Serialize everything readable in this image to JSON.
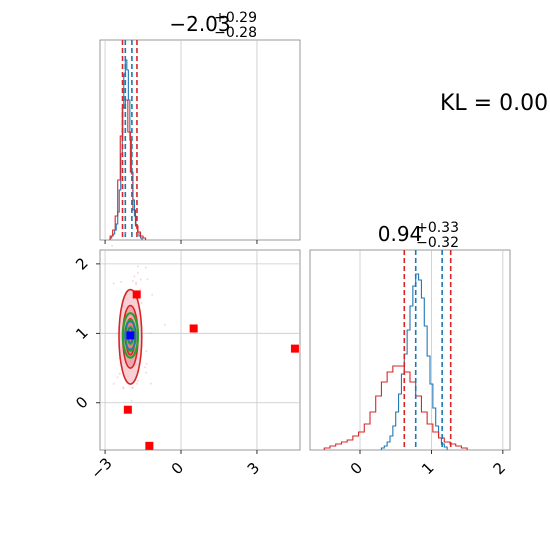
{
  "kl_text": "KL = 0.00",
  "colors": {
    "blue": "#1f77b4",
    "red": "#d62728",
    "green": "#2ca02c",
    "pink": "#f4a6b8",
    "marker_red": "#ff0000",
    "marker_blue": "#0000ff",
    "grid": "#c8c8c8"
  },
  "chart_data": [
    {
      "panel": "marginal-x",
      "type": "histogram",
      "title": "−2.03",
      "title_sup": "+0.29",
      "title_sub": "−0.28",
      "xlim": [
        -3.2,
        4.7
      ],
      "xticks": [
        -3,
        0,
        3
      ],
      "xtick_labels": [
        "−3",
        "0",
        "3"
      ],
      "ylim": [
        0,
        1.0
      ],
      "quantiles_blue": [
        -2.2,
        -1.94
      ],
      "quantiles_red": [
        -2.31,
        -1.74
      ],
      "series": [
        {
          "color": "blue",
          "bin_start": -2.8,
          "bin_width": 0.06,
          "values": [
            0.01,
            0.02,
            0.03,
            0.05,
            0.08,
            0.14,
            0.25,
            0.43,
            0.66,
            0.83,
            0.9,
            0.85,
            0.7,
            0.5,
            0.33,
            0.2,
            0.12,
            0.07,
            0.04,
            0.02,
            0.01
          ]
        },
        {
          "color": "red",
          "bin_start": -2.8,
          "bin_width": 0.1,
          "values": [
            0.02,
            0.05,
            0.12,
            0.3,
            0.52,
            0.66,
            0.7,
            0.54,
            0.34,
            0.15,
            0.07,
            0.04,
            0.02,
            0.01
          ]
        }
      ]
    },
    {
      "panel": "marginal-y",
      "type": "histogram",
      "title": "0.94",
      "title_sup": "+0.33",
      "title_sub": "−0.32",
      "xlim": [
        -0.7,
        2.1
      ],
      "xticks": [
        0,
        1,
        2
      ],
      "xtick_labels": [
        "0",
        "1",
        "2"
      ],
      "ylim": [
        0,
        1.0
      ],
      "quantiles_blue": [
        0.78,
        1.15
      ],
      "quantiles_red": [
        0.62,
        1.27
      ],
      "series": [
        {
          "color": "blue",
          "bin_start": 0.3,
          "bin_width": 0.04,
          "values": [
            0.01,
            0.02,
            0.04,
            0.07,
            0.12,
            0.19,
            0.28,
            0.38,
            0.48,
            0.6,
            0.72,
            0.82,
            0.88,
            0.85,
            0.76,
            0.62,
            0.47,
            0.33,
            0.21,
            0.12,
            0.06,
            0.03,
            0.015
          ]
        },
        {
          "color": "red",
          "bin_start": -0.5,
          "bin_width": 0.08,
          "values": [
            0.01,
            0.02,
            0.03,
            0.04,
            0.05,
            0.07,
            0.09,
            0.13,
            0.19,
            0.27,
            0.34,
            0.39,
            0.42,
            0.42,
            0.39,
            0.34,
            0.27,
            0.19,
            0.13,
            0.09,
            0.06,
            0.04,
            0.03,
            0.02,
            0.01
          ]
        }
      ]
    },
    {
      "panel": "joint",
      "type": "scatter",
      "xlim": [
        -3.2,
        4.7
      ],
      "ylim": [
        -0.68,
        2.2
      ],
      "xticks": [
        -3,
        0,
        3
      ],
      "xtick_labels": [
        "−3",
        "0",
        "3"
      ],
      "yticks": [
        0,
        1,
        2
      ],
      "ytick_labels": [
        "0",
        "1",
        "2"
      ],
      "contours_red": [
        {
          "cx": -2.0,
          "cy": 0.95,
          "rx": 0.45,
          "ry": 0.68
        },
        {
          "cx": -2.0,
          "cy": 0.95,
          "rx": 0.3,
          "ry": 0.45
        },
        {
          "cx": -2.0,
          "cy": 0.95,
          "rx": 0.18,
          "ry": 0.26
        }
      ],
      "contours_green": [
        {
          "cx": -2.0,
          "cy": 0.97,
          "rx": 0.3,
          "ry": 0.32
        },
        {
          "cx": -2.0,
          "cy": 0.97,
          "rx": 0.2,
          "ry": 0.22
        },
        {
          "cx": -2.0,
          "cy": 0.97,
          "rx": 0.1,
          "ry": 0.12
        }
      ],
      "contours_blue": [
        {
          "cx": -2.0,
          "cy": 0.97,
          "rx": 0.22,
          "ry": 0.2
        },
        {
          "cx": -2.0,
          "cy": 0.97,
          "rx": 0.1,
          "ry": 0.1
        }
      ],
      "outliers_red": [
        {
          "x": -1.75,
          "y": 1.56
        },
        {
          "x": 0.5,
          "y": 1.07
        },
        {
          "x": 4.5,
          "y": 0.78
        },
        {
          "x": -2.1,
          "y": -0.1
        },
        {
          "x": -1.25,
          "y": -0.62
        }
      ],
      "true_value": {
        "x": -2.0,
        "y": 0.97
      }
    }
  ]
}
